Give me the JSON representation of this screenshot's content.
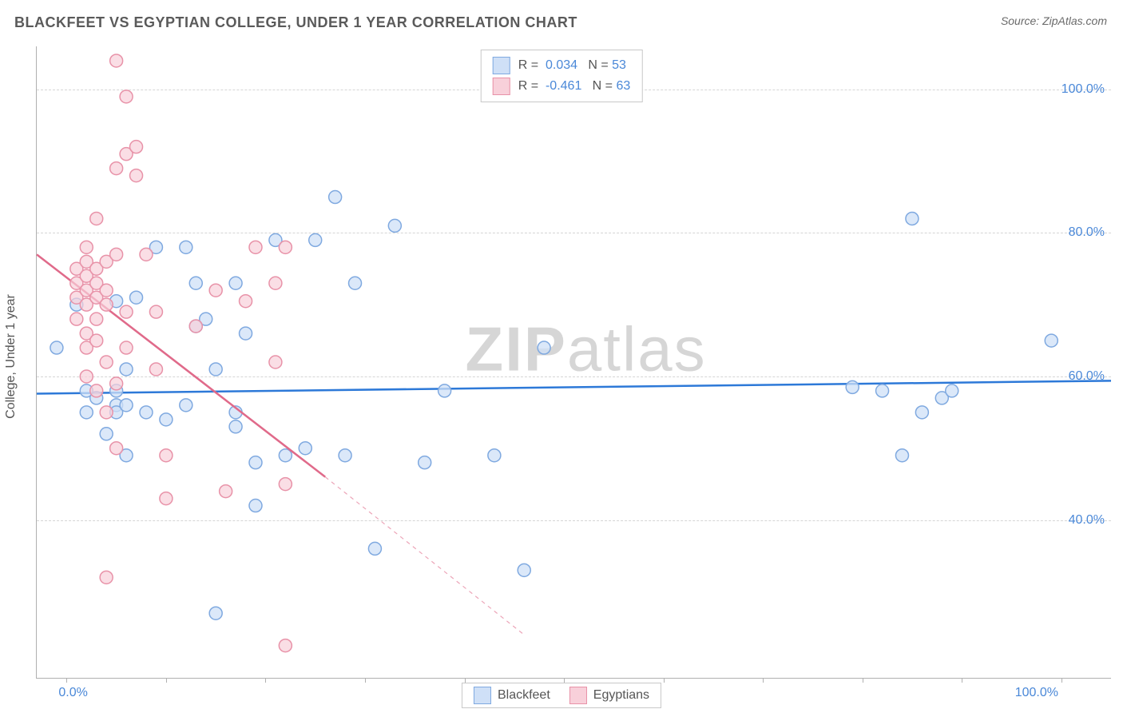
{
  "title": "BLACKFEET VS EGYPTIAN COLLEGE, UNDER 1 YEAR CORRELATION CHART",
  "source": "Source: ZipAtlas.com",
  "watermark": {
    "bold": "ZIP",
    "rest": "atlas"
  },
  "y_axis_label": "College, Under 1 year",
  "chart": {
    "type": "scatter",
    "xlim": [
      -3,
      105
    ],
    "ylim": [
      18,
      106
    ],
    "x_ticks": [
      0,
      10,
      20,
      30,
      40,
      50,
      60,
      70,
      80,
      90,
      100
    ],
    "y_gridlines": [
      40,
      60,
      80,
      100
    ],
    "x_tick_labels": {
      "0": "0.0%",
      "100": "100.0%"
    },
    "y_tick_labels": {
      "40": "40.0%",
      "60": "60.0%",
      "80": "80.0%",
      "100": "100.0%"
    },
    "background_color": "#ffffff",
    "grid_color": "#d5d5d5",
    "axis_color": "#b0b0b0",
    "tick_label_color": "#4a88d8",
    "series": [
      {
        "name": "Blackfeet",
        "marker_radius": 8,
        "marker_fill": "#cfe0f7",
        "marker_stroke": "#7fa9e0",
        "marker_fill_opacity": 0.75,
        "line_color": "#2d79d8",
        "line_width": 2.5,
        "fit": {
          "x1": -3,
          "y1": 57.6,
          "x2": 105,
          "y2": 59.4,
          "dash_after_x": 105
        },
        "R": "0.034",
        "N": "53",
        "points": [
          [
            -1,
            64
          ],
          [
            1,
            70
          ],
          [
            2,
            55
          ],
          [
            2,
            58
          ],
          [
            3,
            57
          ],
          [
            4,
            52
          ],
          [
            5,
            56
          ],
          [
            5,
            55
          ],
          [
            5,
            58
          ],
          [
            5,
            70.5
          ],
          [
            6,
            61
          ],
          [
            6,
            49
          ],
          [
            6,
            56
          ],
          [
            7,
            71
          ],
          [
            8,
            55
          ],
          [
            9,
            78
          ],
          [
            10,
            54
          ],
          [
            12,
            78
          ],
          [
            12,
            56
          ],
          [
            13,
            73
          ],
          [
            13,
            67
          ],
          [
            14,
            68
          ],
          [
            15,
            61
          ],
          [
            15,
            27
          ],
          [
            17,
            73
          ],
          [
            17,
            55
          ],
          [
            17,
            53
          ],
          [
            18,
            66
          ],
          [
            19,
            48
          ],
          [
            19,
            42
          ],
          [
            21,
            79
          ],
          [
            22,
            49
          ],
          [
            24,
            50
          ],
          [
            25,
            79
          ],
          [
            27,
            85
          ],
          [
            28,
            49
          ],
          [
            29,
            73
          ],
          [
            31,
            36
          ],
          [
            33,
            81
          ],
          [
            36,
            48
          ],
          [
            38,
            58
          ],
          [
            43,
            49
          ],
          [
            46,
            33
          ],
          [
            48,
            64
          ],
          [
            79,
            58.5
          ],
          [
            82,
            58
          ],
          [
            84,
            49
          ],
          [
            85,
            82
          ],
          [
            86,
            55
          ],
          [
            88,
            57
          ],
          [
            89,
            58
          ],
          [
            99,
            65
          ]
        ]
      },
      {
        "name": "Egyptians",
        "marker_radius": 8,
        "marker_fill": "#f8d0da",
        "marker_stroke": "#e892a8",
        "marker_fill_opacity": 0.7,
        "line_color": "#e06a8a",
        "line_width": 2.5,
        "fit": {
          "x1": -3,
          "y1": 77,
          "x2": 26,
          "y2": 46,
          "dash_after_x": 26,
          "dash_x2": 46,
          "dash_y2": 24
        },
        "R": "-0.461",
        "N": "63",
        "points": [
          [
            1,
            73
          ],
          [
            1,
            75
          ],
          [
            1,
            71
          ],
          [
            1,
            68
          ],
          [
            2,
            72
          ],
          [
            2,
            74
          ],
          [
            2,
            70
          ],
          [
            2,
            76
          ],
          [
            2,
            78
          ],
          [
            2,
            66
          ],
          [
            2,
            64
          ],
          [
            2,
            60
          ],
          [
            3,
            73
          ],
          [
            3,
            75
          ],
          [
            3,
            71
          ],
          [
            3,
            68
          ],
          [
            3,
            82
          ],
          [
            3,
            65
          ],
          [
            3,
            58
          ],
          [
            4,
            76
          ],
          [
            4,
            72
          ],
          [
            4,
            70
          ],
          [
            4,
            62
          ],
          [
            4,
            55
          ],
          [
            4,
            32
          ],
          [
            5,
            89
          ],
          [
            5,
            77
          ],
          [
            5,
            59
          ],
          [
            5,
            50
          ],
          [
            5,
            104
          ],
          [
            6,
            91
          ],
          [
            6,
            69
          ],
          [
            6,
            64
          ],
          [
            6,
            99
          ],
          [
            7,
            92
          ],
          [
            7,
            88
          ],
          [
            8,
            77
          ],
          [
            9,
            69
          ],
          [
            9,
            61
          ],
          [
            10,
            49
          ],
          [
            10,
            43
          ],
          [
            13,
            67
          ],
          [
            15,
            72
          ],
          [
            16,
            44
          ],
          [
            18,
            70.5
          ],
          [
            19,
            78
          ],
          [
            21,
            62
          ],
          [
            21,
            73
          ],
          [
            22,
            22.5
          ],
          [
            22,
            45
          ],
          [
            22,
            78
          ]
        ]
      }
    ]
  },
  "legend_top_labels": {
    "R_prefix": "R =",
    "N_prefix": "N ="
  },
  "legend_bottom": [
    {
      "label": "Blackfeet",
      "fill": "#cfe0f7",
      "stroke": "#7fa9e0"
    },
    {
      "label": "Egyptians",
      "fill": "#f8d0da",
      "stroke": "#e892a8"
    }
  ]
}
